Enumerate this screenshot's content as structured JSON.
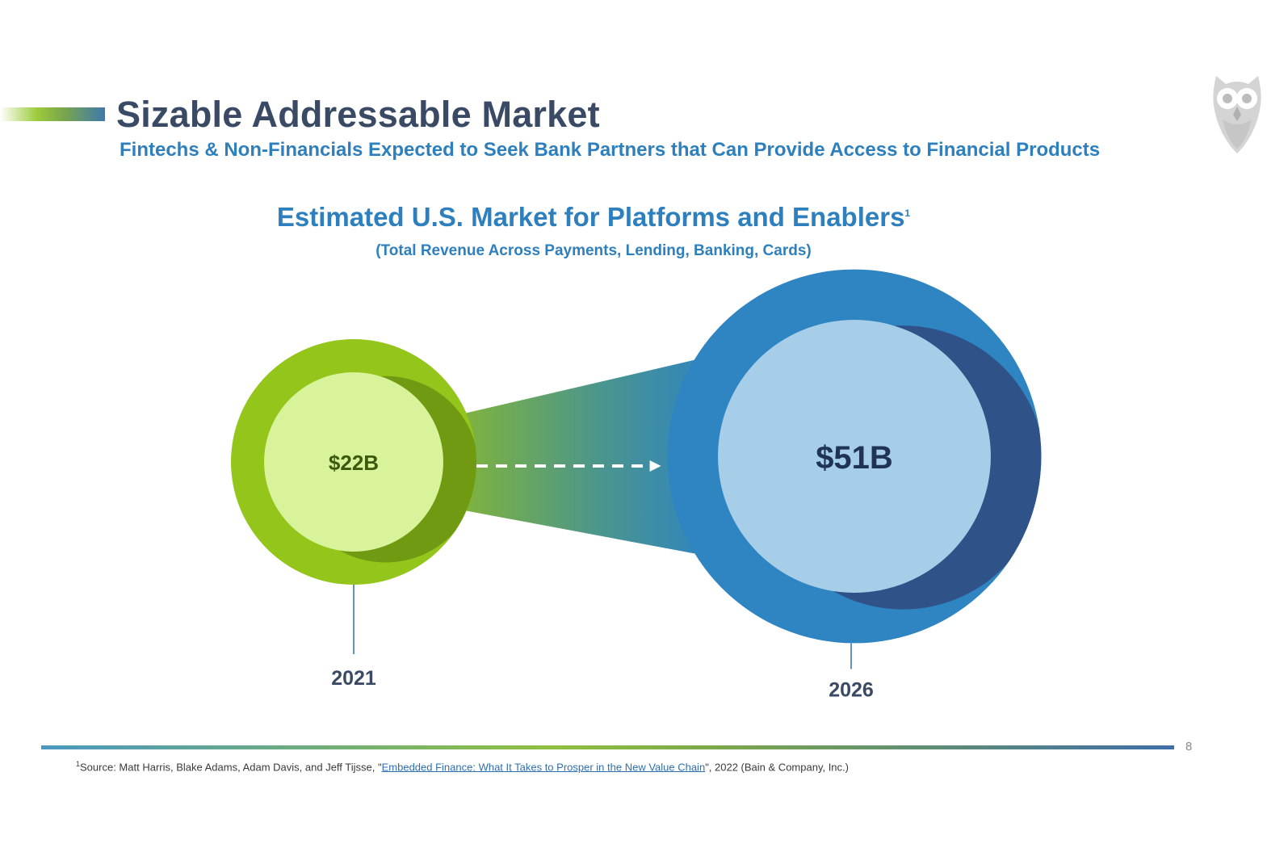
{
  "header": {
    "title": "Sizable Addressable Market",
    "subtitle": "Fintechs & Non-Financials Expected to Seek Bank Partners that Can Provide Access to Financial Products"
  },
  "logo": {
    "icon": "owl-icon"
  },
  "chart_data": {
    "type": "bubble",
    "title": "Estimated U.S. Market for Platforms and Enablers",
    "title_footnote_marker": "1",
    "subtitle": "(Total Revenue Across Payments, Lending, Banking, Cards)",
    "categories": [
      "2021",
      "2026"
    ],
    "values": [
      22,
      51
    ],
    "value_labels": [
      "$22B",
      "$51B"
    ],
    "unit": "USD billions",
    "colors": {
      "2021": {
        "outer": "#93c51b",
        "inner": "#d9f39b",
        "shadow": "#6f9a12",
        "label": "#3b5a0e"
      },
      "2026": {
        "outer": "#2f84c2",
        "inner": "#a7cee8",
        "shadow": "#2f5288",
        "label": "#1e3356"
      }
    }
  },
  "footer": {
    "page_number": "8",
    "footnote_marker": "1",
    "footnote_prefix": "Source: Matt Harris, Blake Adams, Adam Davis, and Jeff Tijsse, \"",
    "footnote_link": "Embedded Finance: What It Takes to Prosper in the New Value Chain",
    "footnote_suffix": "\", 2022 (Bain & Company, Inc.)"
  }
}
